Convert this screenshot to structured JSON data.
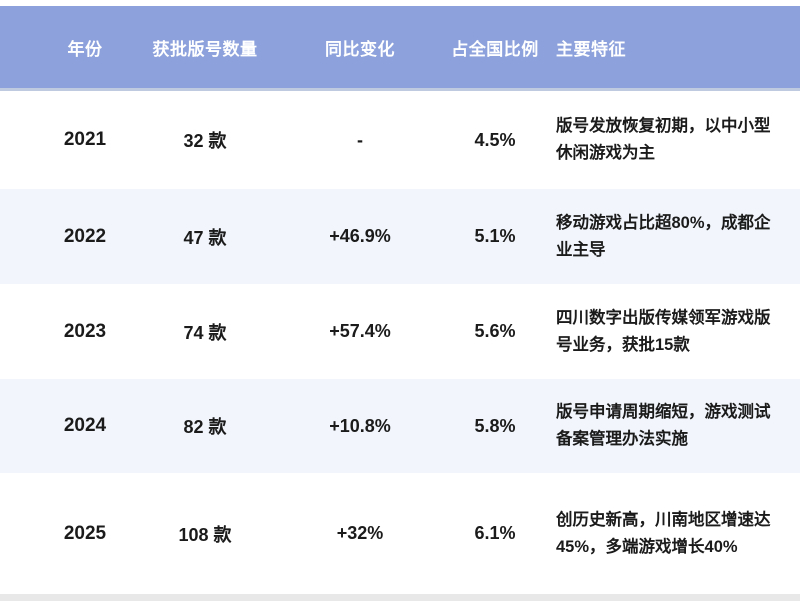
{
  "theme": {
    "header_bg": "#8da2dc",
    "header_text": "#ffffff",
    "header_border": "#bfc9e0",
    "row_bg": "#ffffff",
    "row_alt_bg": "#f2f6fc",
    "body_text": "#1b1b1b",
    "footer_strip": "#e8e8e8",
    "page_bg": "#ffffff"
  },
  "table": {
    "columns": [
      {
        "key": "year",
        "label": "年份"
      },
      {
        "key": "count",
        "label": "获批版号数量"
      },
      {
        "key": "yoy",
        "label": "同比变化"
      },
      {
        "key": "share",
        "label": "占全国比例"
      },
      {
        "key": "features",
        "label": "主要特征"
      }
    ],
    "rows": [
      {
        "year": "2021",
        "count": "32 款",
        "yoy": "-",
        "share": "4.5%",
        "features": "版号发放恢复初期，以中小型休闲游戏为主"
      },
      {
        "year": "2022",
        "count": "47 款",
        "yoy": "+46.9%",
        "share": "5.1%",
        "features": "移动游戏占比超80%，成都企业主导"
      },
      {
        "year": "2023",
        "count": "74 款",
        "yoy": "+57.4%",
        "share": "5.6%",
        "features": "四川数字出版传媒领军游戏版号业务，获批15款"
      },
      {
        "year": "2024",
        "count": "82 款",
        "yoy": "+10.8%",
        "share": "5.8%",
        "features": "版号申请周期缩短，游戏测试备案管理办法实施"
      },
      {
        "year": "2025",
        "count": "108 款",
        "yoy": "+32%",
        "share": "6.1%",
        "features": "创历史新高，川南地区增速达45%，多端游戏增长40%"
      }
    ]
  },
  "chart_data": {
    "type": "table",
    "title": "",
    "columns": [
      "年份",
      "获批版号数量",
      "同比变化",
      "占全国比例",
      "主要特征"
    ],
    "rows": [
      [
        "2021",
        "32 款",
        "-",
        "4.5%",
        "版号发放恢复初期，以中小型休闲游戏为主"
      ],
      [
        "2022",
        "47 款",
        "+46.9%",
        "5.1%",
        "移动游戏占比超80%，成都企业主导"
      ],
      [
        "2023",
        "74 款",
        "+57.4%",
        "5.6%",
        "四川数字出版传媒领军游戏版号业务，获批15款"
      ],
      [
        "2024",
        "82 款",
        "+10.8%",
        "5.8%",
        "版号申请周期缩短，游戏测试备案管理办法实施"
      ],
      [
        "2025",
        "108 款",
        "+32%",
        "6.1%",
        "创历史新高，川南地区增速达45%，多端游戏增长40%"
      ]
    ],
    "numeric": {
      "years": [
        2021,
        2022,
        2023,
        2024,
        2025
      ],
      "approved_license_counts": [
        32,
        47,
        74,
        82,
        108
      ],
      "yoy_change_pct": [
        null,
        46.9,
        57.4,
        10.8,
        32
      ],
      "national_share_pct": [
        4.5,
        5.1,
        5.6,
        5.8,
        6.1
      ]
    },
    "layout": {
      "header_position": "top",
      "zebra_striping": true
    }
  }
}
